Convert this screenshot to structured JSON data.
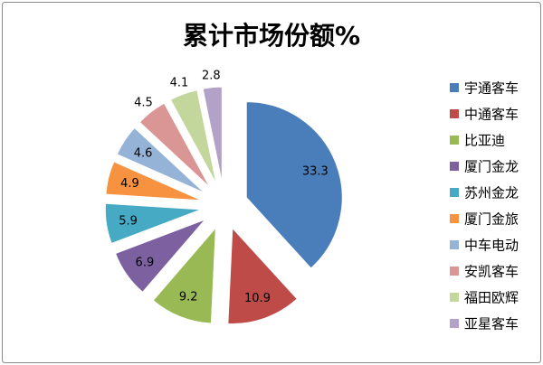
{
  "chart_data": {
    "type": "pie",
    "title": "累计市场份额%",
    "categories": [
      "宇通客车",
      "中通客车",
      "比亚迪",
      "厦门金龙",
      "苏州金龙",
      "厦门金旅",
      "中车电动",
      "安凯客车",
      "福田欧辉",
      "亚星客车"
    ],
    "values": [
      33.3,
      10.9,
      9.2,
      6.9,
      5.9,
      4.9,
      4.6,
      4.5,
      4.1,
      2.8
    ],
    "colors": [
      "#4A7EBB",
      "#BE4B48",
      "#98B954",
      "#7D60A0",
      "#46AAC5",
      "#F69240",
      "#94B3D6",
      "#D99694",
      "#C3D69B",
      "#B3A2C7"
    ],
    "exploded": true,
    "start_angle": "top, clockwise",
    "legend": "right"
  }
}
